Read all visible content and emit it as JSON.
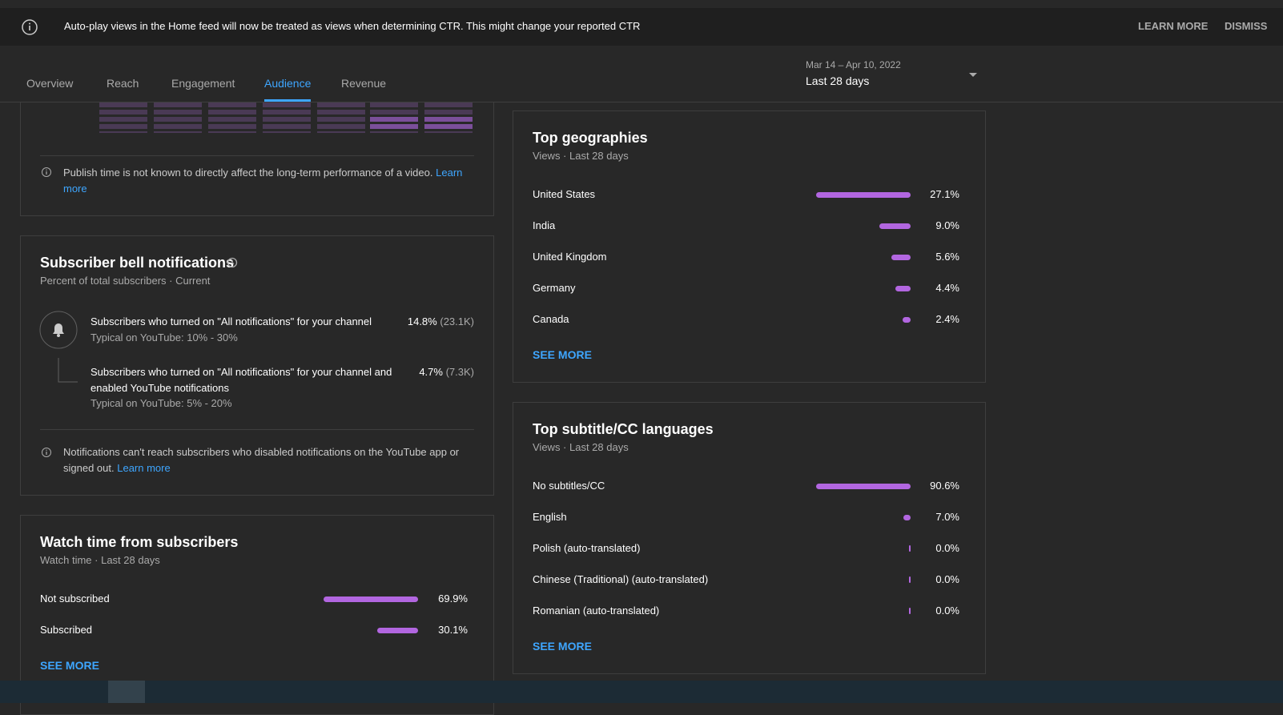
{
  "banner": {
    "text": "Auto-play views in the Home feed will now be treated as views when determining CTR. This might change your reported CTR",
    "learn_more": "LEARN MORE",
    "dismiss": "DISMISS"
  },
  "tabs": {
    "items": [
      "Overview",
      "Reach",
      "Engagement",
      "Audience",
      "Revenue"
    ],
    "active": 3
  },
  "date_range": {
    "dates": "Mar 14 – Apr 10, 2022",
    "label": "Last 28 days"
  },
  "publish_time_card": {
    "note": "Publish time is not known to directly affect the long-term performance of a video.",
    "link": "Learn more"
  },
  "subscriber_bell": {
    "title": "Subscriber bell notifications",
    "subtitle": "Percent of total subscribers · Current",
    "rows": [
      {
        "text": "Subscribers who turned on \"All notifications\" for your channel",
        "typical": "Typical on YouTube: 10% - 30%",
        "percent": "14.8%",
        "count": "(23.1K)"
      },
      {
        "text": "Subscribers who turned on \"All notifications\" for your channel and enabled YouTube notifications",
        "typical": "Typical on YouTube: 5% - 20%",
        "percent": "4.7%",
        "count": "(7.3K)"
      }
    ],
    "note": "Notifications can't reach subscribers who disabled notifications on the YouTube app or signed out.",
    "link": "Learn more"
  },
  "watch_time": {
    "title": "Watch time from subscribers",
    "subtitle": "Watch time · Last 28 days",
    "categories": [
      "Not subscribed",
      "Subscribed"
    ],
    "values": [
      69.9,
      30.1
    ],
    "value_labels": [
      "69.9%",
      "30.1%"
    ],
    "see_more": "SEE MORE",
    "color": "#b266e0"
  },
  "top_geographies": {
    "title": "Top geographies",
    "subtitle": "Views · Last 28 days",
    "categories": [
      "United States",
      "India",
      "United Kingdom",
      "Germany",
      "Canada"
    ],
    "values": [
      27.1,
      9.0,
      5.6,
      4.4,
      2.4
    ],
    "value_labels": [
      "27.1%",
      "9.0%",
      "5.6%",
      "4.4%",
      "2.4%"
    ],
    "see_more": "SEE MORE",
    "color": "#b266e0"
  },
  "top_languages": {
    "title": "Top subtitle/CC languages",
    "subtitle": "Views · Last 28 days",
    "categories": [
      "No subtitles/CC",
      "English",
      "Polish (auto-translated)",
      "Chinese (Traditional) (auto-translated)",
      "Romanian (auto-translated)"
    ],
    "values": [
      90.6,
      7.0,
      0.0,
      0.0,
      0.0
    ],
    "value_labels": [
      "90.6%",
      "7.0%",
      "0.0%",
      "0.0%",
      "0.0%"
    ],
    "see_more": "SEE MORE",
    "color": "#b266e0"
  }
}
